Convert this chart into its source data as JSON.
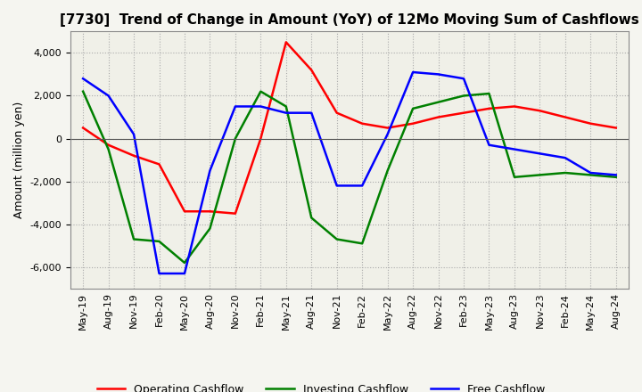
{
  "title": "[7730]  Trend of Change in Amount (YoY) of 12Mo Moving Sum of Cashflows",
  "ylabel": "Amount (million yen)",
  "ylim": [
    -7000,
    5000
  ],
  "yticks": [
    -6000,
    -4000,
    -2000,
    0,
    2000,
    4000
  ],
  "x_labels": [
    "May-19",
    "Aug-19",
    "Nov-19",
    "Feb-20",
    "May-20",
    "Aug-20",
    "Nov-20",
    "Feb-21",
    "May-21",
    "Aug-21",
    "Nov-21",
    "Feb-22",
    "May-22",
    "Aug-22",
    "Nov-22",
    "Feb-23",
    "May-23",
    "Aug-23",
    "Nov-23",
    "Feb-24",
    "May-24",
    "Aug-24"
  ],
  "operating": [
    500,
    -300,
    -800,
    -1200,
    -3400,
    -3400,
    -3500,
    0,
    4500,
    3200,
    1200,
    700,
    500,
    700,
    1000,
    1200,
    1400,
    1500,
    1300,
    1000,
    700,
    500
  ],
  "investing": [
    2200,
    -500,
    -4700,
    -4800,
    -5800,
    -4200,
    0,
    2200,
    1500,
    -3700,
    -4700,
    -4900,
    -1500,
    1400,
    1700,
    2000,
    2100,
    -1800,
    -1700,
    -1600,
    -1700,
    -1800
  ],
  "free": [
    2800,
    2000,
    200,
    -6300,
    -6300,
    -1500,
    1500,
    1500,
    1200,
    1200,
    -2200,
    -2200,
    200,
    3100,
    3000,
    2800,
    -300,
    -500,
    -700,
    -900,
    -1600,
    -1700
  ],
  "op_color": "#ff0000",
  "inv_color": "#008000",
  "free_color": "#0000ff",
  "bg_color": "#f5f5f0",
  "plot_bg_color": "#f0f0e8",
  "grid_color": "#aaaaaa",
  "title_fontsize": 11,
  "label_fontsize": 9,
  "tick_fontsize": 8,
  "legend_fontsize": 9
}
